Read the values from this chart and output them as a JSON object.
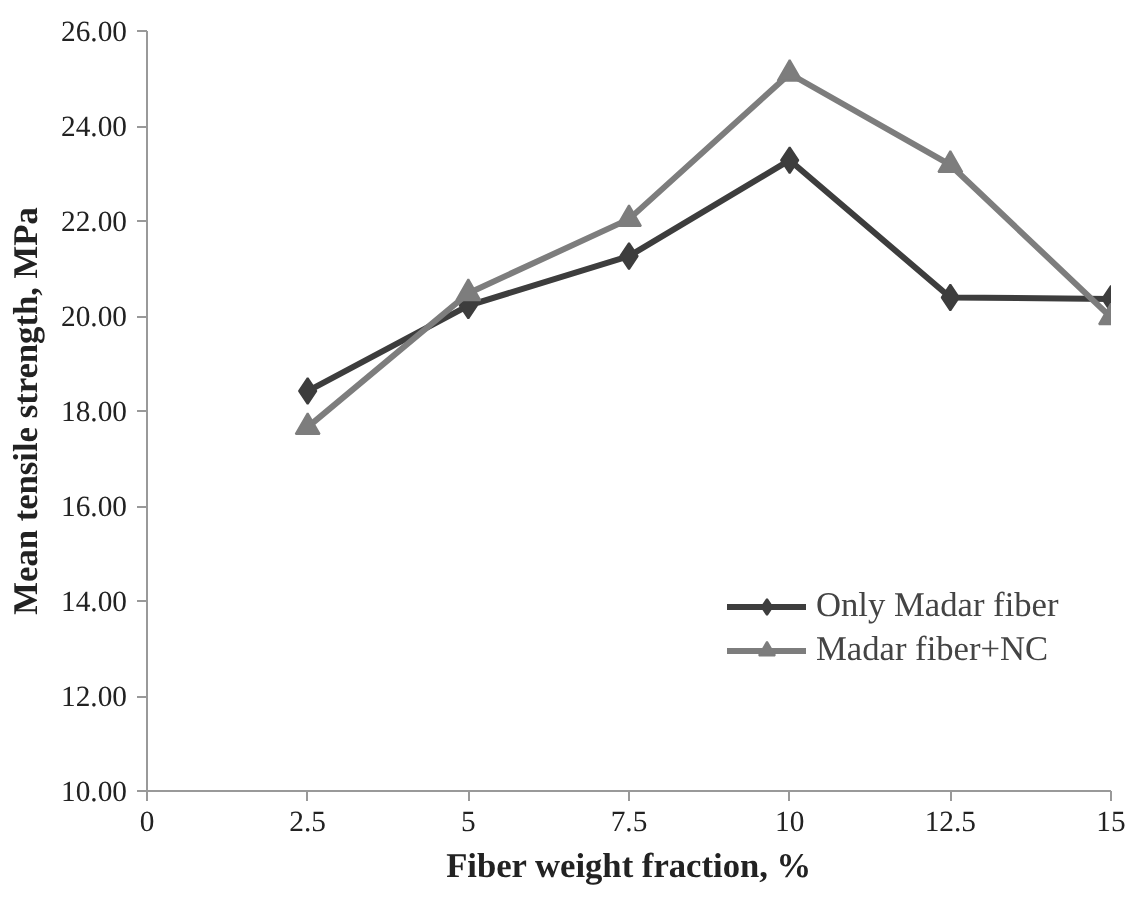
{
  "chart_data": {
    "type": "line",
    "xlabel": "Fiber weight fraction, %",
    "ylabel": "Mean tensile strength, MPa",
    "x": [
      2.5,
      5,
      7.5,
      10,
      12.5,
      15
    ],
    "series": [
      {
        "name": "Only Madar fiber",
        "color": "#3d3d3d",
        "marker": "diamond",
        "values": [
          18.42,
          20.22,
          21.26,
          23.28,
          20.39,
          20.36
        ]
      },
      {
        "name": "Madar fiber+NC",
        "color": "#7d7d7d",
        "marker": "triangle",
        "values": [
          17.66,
          20.48,
          22.04,
          25.1,
          23.18,
          19.97
        ]
      }
    ],
    "xlim": [
      0,
      15
    ],
    "xticks": [
      0,
      2.5,
      5,
      7.5,
      10,
      12.5,
      15
    ],
    "ylim": [
      10,
      26
    ],
    "yticks": [
      {
        "value": 10,
        "label": "10.00"
      },
      {
        "value": 12,
        "label": "12.00"
      },
      {
        "value": 14,
        "label": "14.00"
      },
      {
        "value": 16,
        "label": "16.00"
      },
      {
        "value": 18,
        "label": "18.00"
      },
      {
        "value": 20,
        "label": "20.00"
      },
      {
        "value": 22,
        "label": "22.00"
      },
      {
        "value": 24,
        "label": "24.00"
      },
      {
        "value": 26,
        "label": "26.00"
      }
    ],
    "grid": false,
    "legend": "right",
    "line_style": "solid"
  }
}
